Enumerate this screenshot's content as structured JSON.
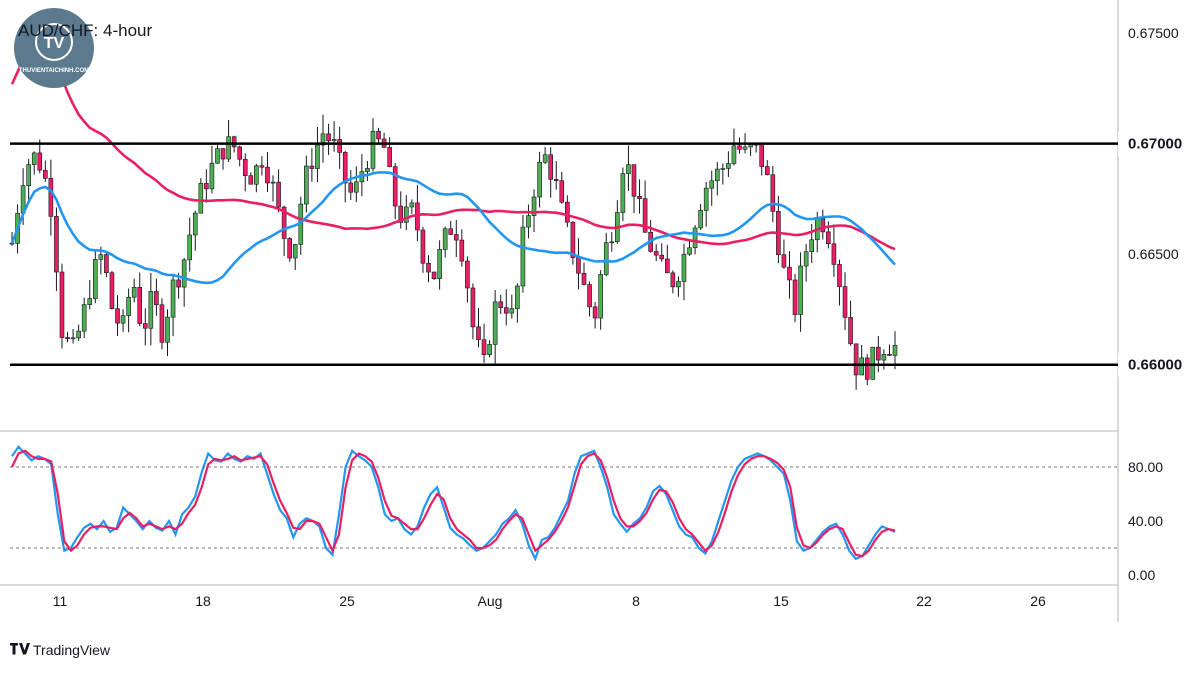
{
  "chart_data": [
    {
      "type": "candlestick",
      "title": "AUD/CHF: 4-hour",
      "y_ticks": [
        "0.67500",
        "0.67000",
        "0.66500",
        "0.66000"
      ],
      "y_tick_values": [
        0.675,
        0.67,
        0.665,
        0.66
      ],
      "ylim": [
        0.657,
        0.6765
      ],
      "x_ticks": [
        "11",
        "18",
        "25",
        "Aug",
        "8",
        "15",
        "22",
        "26"
      ],
      "horizontal_levels": [
        {
          "value": 0.67,
          "label": "0.67000",
          "color": "#000000"
        },
        {
          "value": 0.66,
          "label": "0.66000",
          "color": "#000000"
        }
      ],
      "series": [
        {
          "color": "#e91e63",
          "kind": "moving-average"
        },
        {
          "color": "#2196f3",
          "kind": "moving-average"
        }
      ],
      "up_color": "#4caf50",
      "down_color": "#e91e63",
      "approx_ohlc_path": [
        0.6655,
        0.6685,
        0.6695,
        0.669,
        0.667,
        0.6615,
        0.6605,
        0.662,
        0.664,
        0.665,
        0.6625,
        0.6615,
        0.664,
        0.6615,
        0.663,
        0.6615,
        0.6635,
        0.6645,
        0.6665,
        0.668,
        0.669,
        0.6698,
        0.67,
        0.669,
        0.6685,
        0.6695,
        0.668,
        0.666,
        0.665,
        0.668,
        0.6695,
        0.6705,
        0.67,
        0.6685,
        0.6675,
        0.669,
        0.67,
        0.67,
        0.6675,
        0.6665,
        0.667,
        0.665,
        0.664,
        0.6655,
        0.6665,
        0.665,
        0.6615,
        0.6598,
        0.6625,
        0.663,
        0.662,
        0.666,
        0.668,
        0.6695,
        0.6685,
        0.6665,
        0.665,
        0.6635,
        0.662,
        0.665,
        0.6665,
        0.6695,
        0.668,
        0.666,
        0.665,
        0.664,
        0.6638,
        0.665,
        0.6665,
        0.668,
        0.6685,
        0.669,
        0.67,
        0.6695,
        0.6698,
        0.669,
        0.6665,
        0.664,
        0.6625,
        0.665,
        0.6665,
        0.6665,
        0.665,
        0.6625,
        0.66,
        0.6598,
        0.6603,
        0.661,
        0.6608
      ]
    },
    {
      "type": "line",
      "y_ticks": [
        "80.00",
        "40.00",
        "0.00"
      ],
      "y_tick_values": [
        80,
        40,
        0
      ],
      "ylim": [
        0,
        100
      ],
      "reference_lines": [
        80,
        20
      ],
      "series": [
        {
          "color": "#2196f3",
          "values": [
            88,
            95,
            90,
            85,
            88,
            86,
            82,
            45,
            18,
            20,
            28,
            35,
            38,
            34,
            40,
            32,
            35,
            50,
            45,
            40,
            34,
            40,
            35,
            33,
            40,
            30,
            45,
            50,
            58,
            76,
            90,
            85,
            84,
            90,
            86,
            84,
            88,
            86,
            90,
            75,
            60,
            48,
            42,
            28,
            38,
            42,
            40,
            36,
            20,
            15,
            45,
            80,
            92,
            88,
            85,
            80,
            65,
            45,
            40,
            42,
            34,
            30,
            36,
            50,
            60,
            65,
            50,
            35,
            30,
            27,
            22,
            18,
            20,
            25,
            30,
            38,
            42,
            48,
            38,
            22,
            12,
            26,
            28,
            35,
            45,
            55,
            75,
            88,
            90,
            92,
            80,
            65,
            45,
            38,
            32,
            38,
            42,
            50,
            62,
            66,
            60,
            48,
            36,
            30,
            28,
            20,
            16,
            25,
            40,
            55,
            70,
            80,
            86,
            88,
            90,
            88,
            85,
            80,
            75,
            55,
            25,
            18,
            20,
            26,
            32,
            36,
            38,
            30,
            18,
            12,
            14,
            22,
            30,
            36,
            34,
            32
          ]
        },
        {
          "color": "#e91e63",
          "values": [
            80,
            90,
            92,
            88,
            86,
            86,
            84,
            60,
            25,
            18,
            22,
            30,
            35,
            36,
            36,
            35,
            34,
            42,
            46,
            42,
            36,
            38,
            36,
            34,
            36,
            34,
            38,
            46,
            52,
            65,
            82,
            86,
            85,
            86,
            88,
            85,
            86,
            87,
            88,
            82,
            68,
            55,
            46,
            35,
            34,
            40,
            40,
            38,
            28,
            18,
            30,
            65,
            85,
            90,
            88,
            84,
            72,
            55,
            44,
            42,
            38,
            34,
            34,
            42,
            52,
            60,
            56,
            42,
            34,
            30,
            26,
            20,
            20,
            22,
            26,
            34,
            40,
            45,
            42,
            30,
            18,
            22,
            26,
            32,
            40,
            50,
            66,
            82,
            88,
            90,
            85,
            72,
            55,
            42,
            36,
            36,
            40,
            46,
            56,
            63,
            62,
            54,
            42,
            34,
            30,
            24,
            18,
            22,
            32,
            46,
            62,
            74,
            82,
            86,
            88,
            88,
            86,
            83,
            78,
            65,
            35,
            22,
            20,
            24,
            30,
            34,
            36,
            34,
            24,
            15,
            14,
            18,
            26,
            32,
            34,
            33
          ]
        }
      ]
    }
  ],
  "footer": {
    "brand": "TradingView"
  },
  "logo": {
    "text": "THUVIENTAICHINH.COM",
    "monogram": "TV"
  }
}
